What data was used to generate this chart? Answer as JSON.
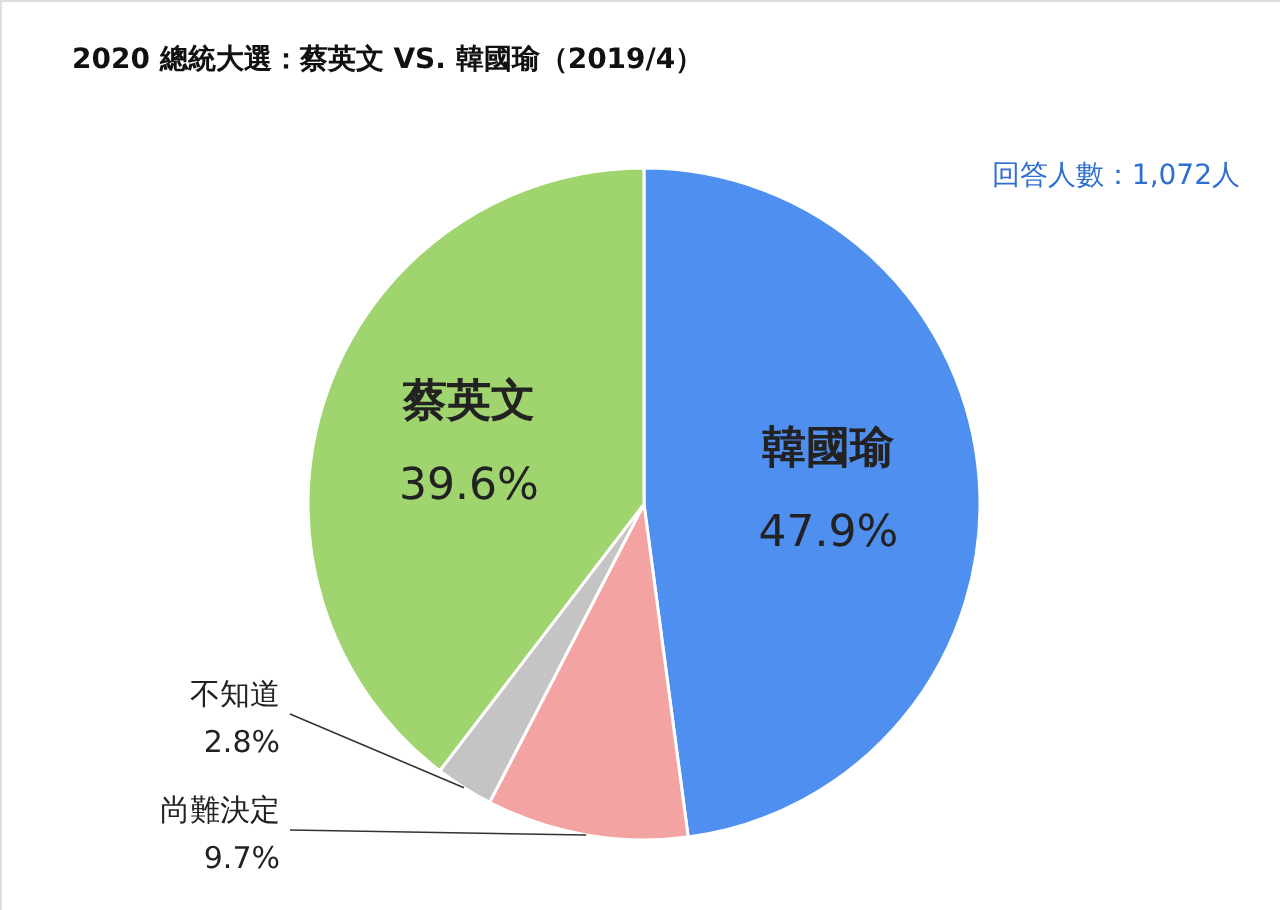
{
  "chart_data": {
    "type": "pie",
    "title": "2020 總統大選：蔡英文 VS. 韓國瑜（2019/4）",
    "categories": [
      "韓國瑜",
      "尚難決定",
      "不知道",
      "蔡英文"
    ],
    "values": [
      47.9,
      9.7,
      2.8,
      39.6
    ],
    "value_labels": [
      "47.9%",
      "9.7%",
      "2.8%",
      "39.6%"
    ],
    "colors": [
      "#4f8ff0",
      "#f4a3a3",
      "#c4c4c4",
      "#9fd46e"
    ],
    "annotations": [
      "回答人數：1,072人"
    ]
  }
}
